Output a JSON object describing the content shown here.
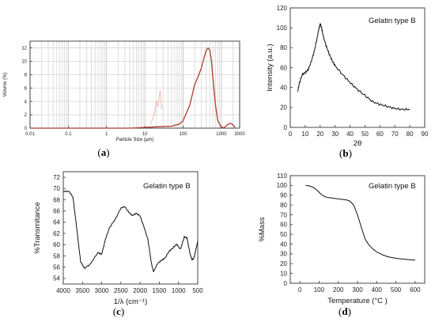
{
  "chart_data": [
    {
      "type": "line",
      "panel_label": {
        "open": "(",
        "letter": "a",
        "close": ")"
      },
      "xlabel": "Particle Size (μm)",
      "ylabel": "Volume (%)",
      "x_scale": "log",
      "xlim": [
        0.01,
        3000
      ],
      "ylim": [
        0,
        13
      ],
      "xticks": [
        "0.01",
        "0.1",
        "1",
        "10",
        "100",
        "1000",
        "3000"
      ],
      "yticks": [
        "0",
        "2",
        "4",
        "6",
        "8",
        "10",
        "12"
      ],
      "grid": true,
      "series": [
        {
          "color": "#b03a2e",
          "x": [
            0.01,
            1,
            3,
            5,
            8,
            10,
            20,
            50,
            80,
            100,
            150,
            200,
            250,
            300,
            350,
            400,
            450,
            500,
            550,
            600,
            700,
            800,
            1000,
            1200,
            1500,
            1800,
            2000,
            2300
          ],
          "y": [
            0,
            0,
            0,
            0.02,
            0.08,
            0.12,
            0.2,
            0.3,
            0.6,
            1.1,
            3.5,
            6.5,
            7.8,
            9.0,
            10.5,
            11.6,
            12.0,
            11.6,
            10.0,
            7.5,
            3.5,
            1.2,
            0.1,
            0.1,
            0.6,
            0.7,
            0.5,
            0.1
          ]
        },
        {
          "color": "#f2b6b0",
          "x": [
            14,
            16,
            18,
            20,
            22,
            25,
            28
          ],
          "y": [
            0.5,
            1.4,
            2.2,
            4.1,
            3.2,
            5.6,
            2.8
          ]
        }
      ]
    },
    {
      "type": "line",
      "panel_label": {
        "open": "(",
        "letter": "b",
        "close": ")"
      },
      "annotation": "Gelatin type B",
      "xlabel": "2θ",
      "ylabel": "Intensity (a.u.)",
      "xlim": [
        0,
        90
      ],
      "ylim": [
        0,
        120
      ],
      "xticks": [
        "0",
        "10",
        "20",
        "30",
        "40",
        "50",
        "60",
        "70",
        "80",
        "90"
      ],
      "yticks": [
        "0",
        "20",
        "40",
        "60",
        "80",
        "100",
        "120"
      ],
      "series": [
        {
          "color": "#111111",
          "x": [
            5,
            6,
            8,
            10,
            12,
            14,
            16,
            18,
            19,
            20,
            21,
            22,
            24,
            26,
            28,
            30,
            35,
            40,
            45,
            50,
            55,
            60,
            65,
            70,
            75,
            80
          ],
          "y": [
            36,
            44,
            53,
            55,
            58,
            66,
            76,
            90,
            98,
            104,
            100,
            92,
            82,
            74,
            67,
            62,
            53,
            45,
            38,
            32,
            26,
            23,
            21,
            19,
            18,
            18
          ]
        }
      ]
    },
    {
      "type": "line",
      "panel_label": {
        "open": "(",
        "letter": "c",
        "close": ")"
      },
      "annotation": "Gelatin type B",
      "xlabel": "1/λ (cm⁻¹)",
      "ylabel": "%Transmitance",
      "xlim": [
        4000,
        500
      ],
      "ylim": [
        53,
        73
      ],
      "xticks": [
        "4000",
        "3500",
        "3000",
        "2500",
        "2000",
        "1500",
        "1000",
        "500"
      ],
      "yticks": [
        "54",
        "56",
        "58",
        "60",
        "62",
        "64",
        "66",
        "68",
        "70",
        "72"
      ],
      "series": [
        {
          "color": "#111111",
          "x": [
            4000,
            3850,
            3750,
            3650,
            3550,
            3450,
            3300,
            3100,
            3000,
            2900,
            2800,
            2650,
            2500,
            2400,
            2300,
            2200,
            2100,
            2000,
            1900,
            1800,
            1700,
            1650,
            1550,
            1450,
            1350,
            1250,
            1150,
            1050,
            950,
            850,
            780,
            700,
            650,
            600,
            550,
            500
          ],
          "y": [
            69.5,
            69.5,
            68.5,
            63,
            57,
            55.8,
            56.5,
            58.6,
            58.3,
            61,
            63,
            64.5,
            66.5,
            66.8,
            65.8,
            65.2,
            65.6,
            65.1,
            63.2,
            61,
            56.5,
            55.2,
            56.6,
            57.2,
            57.6,
            58.8,
            59.4,
            60.1,
            59.2,
            61.4,
            61.2,
            58.4,
            57.3,
            57.6,
            59.1,
            60.6
          ]
        }
      ]
    },
    {
      "type": "line",
      "panel_label": {
        "open": "(",
        "letter": "d",
        "close": ")"
      },
      "annotation": "Gelatin type B",
      "xlabel": "Temperature (°C )",
      "ylabel": "%Mass",
      "xlim": [
        -50,
        650
      ],
      "ylim": [
        0,
        110
      ],
      "xticks": [
        "0",
        "100",
        "200",
        "300",
        "400",
        "500",
        "600"
      ],
      "yticks": [
        "0",
        "10",
        "20",
        "30",
        "40",
        "50",
        "60",
        "70",
        "80",
        "90",
        "100",
        "110"
      ],
      "series": [
        {
          "color": "#111111",
          "x": [
            30,
            50,
            70,
            90,
            110,
            130,
            150,
            180,
            210,
            240,
            260,
            280,
            300,
            320,
            340,
            360,
            380,
            400,
            430,
            460,
            500,
            550,
            600
          ],
          "y": [
            100,
            99.5,
            98,
            95,
            91,
            88.5,
            87.5,
            86.8,
            86,
            85.3,
            84,
            80,
            70,
            57,
            45,
            39,
            35,
            32,
            29,
            27,
            25.5,
            24.5,
            23.5
          ]
        }
      ]
    }
  ]
}
